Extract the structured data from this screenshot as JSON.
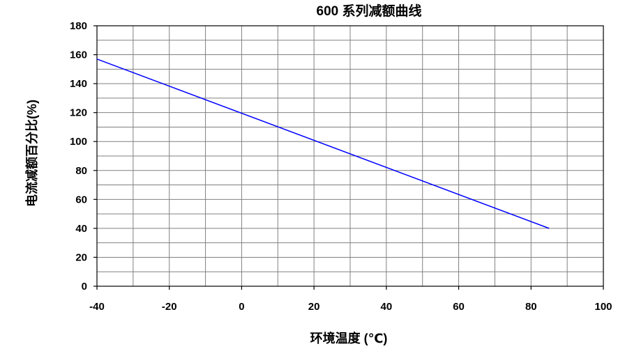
{
  "chart_data": {
    "type": "line",
    "title": "600 系列减额曲线",
    "xlabel": "环境温度 (℃)",
    "ylabel": "电流减额百分比(%)",
    "xlim": [
      -40,
      100
    ],
    "ylim": [
      0,
      180
    ],
    "x_ticks": [
      -40,
      -20,
      0,
      20,
      40,
      60,
      80,
      100
    ],
    "y_ticks": [
      0,
      20,
      40,
      60,
      80,
      100,
      120,
      140,
      160,
      180
    ],
    "x_gridlines_every": 10,
    "y_gridlines_every": 10,
    "grid": true,
    "legend": "none",
    "series": [
      {
        "x": [
          -40,
          85
        ],
        "y": [
          157,
          40
        ],
        "color": "#0000ff"
      }
    ],
    "colors": {
      "grid": "#808080",
      "frame": "#000000",
      "line": "#0000ff"
    }
  }
}
